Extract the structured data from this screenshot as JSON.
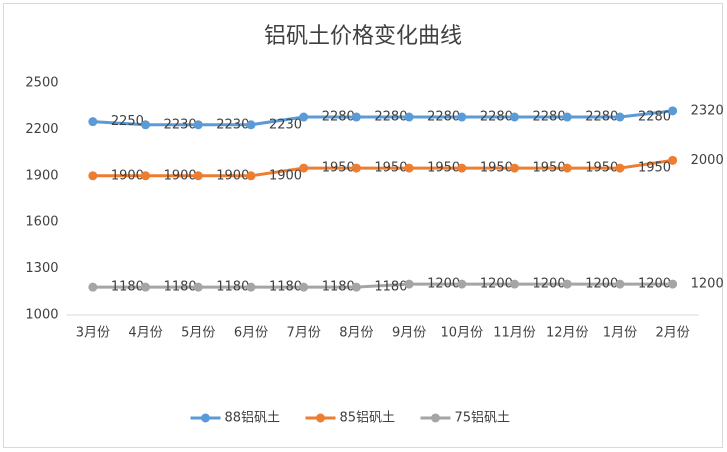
{
  "chart_data": {
    "type": "line",
    "title": "铝矾土价格变化曲线",
    "categories": [
      "3月份",
      "4月份",
      "5月份",
      "6月份",
      "7月份",
      "8月份",
      "9月份",
      "10月份",
      "11月份",
      "12月份",
      "1月份",
      "2月份"
    ],
    "series": [
      {
        "name": "88铝矾土",
        "color": "#5b9bd5",
        "values": [
          2250,
          2230,
          2230,
          2230,
          2280,
          2280,
          2280,
          2280,
          2280,
          2280,
          2280,
          2320
        ]
      },
      {
        "name": "85铝矾土",
        "color": "#ed7d31",
        "values": [
          1900,
          1900,
          1900,
          1900,
          1950,
          1950,
          1950,
          1950,
          1950,
          1950,
          1950,
          2000
        ]
      },
      {
        "name": "75铝矾土",
        "color": "#a5a5a5",
        "values": [
          1180,
          1180,
          1180,
          1180,
          1180,
          1180,
          1200,
          1200,
          1200,
          1200,
          1200,
          1200
        ]
      }
    ],
    "ylim": [
      1000,
      2500
    ],
    "yticks": [
      1000,
      1300,
      1600,
      1900,
      2200,
      2500
    ],
    "grid": false,
    "legend": "bottom"
  }
}
